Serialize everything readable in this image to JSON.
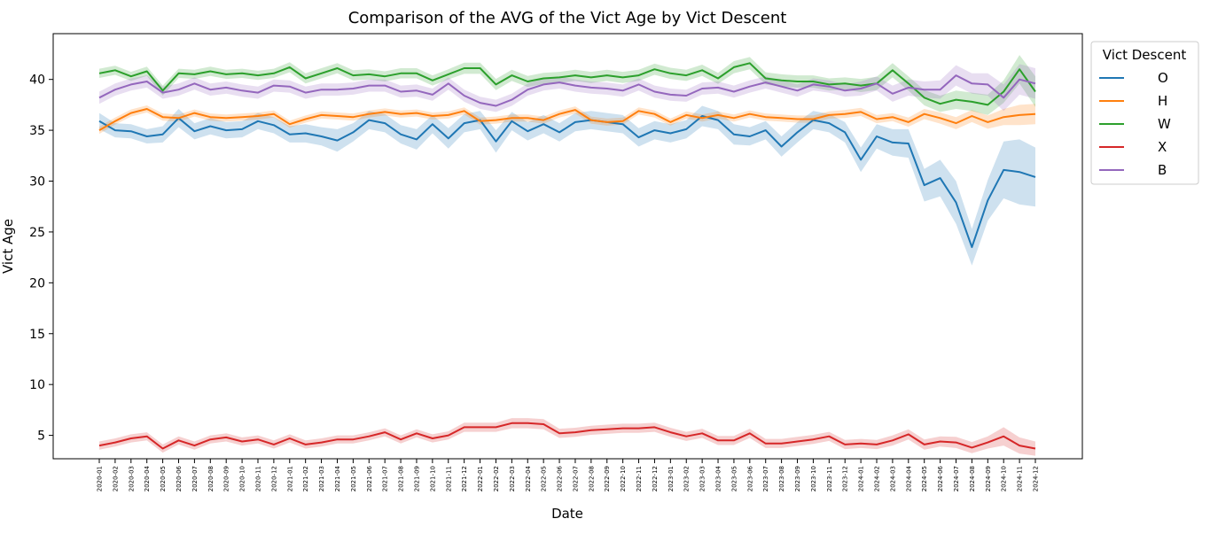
{
  "chart_data": {
    "type": "line",
    "title": "Comparison of the AVG of the Vict Age by Vict Descent",
    "xlabel": "Date",
    "ylabel": "Vict Age",
    "x": [
      "2020-01",
      "2020-02",
      "2020-03",
      "2020-04",
      "2020-05",
      "2020-06",
      "2020-07",
      "2020-08",
      "2020-09",
      "2020-10",
      "2020-11",
      "2020-12",
      "2021-01",
      "2021-02",
      "2021-03",
      "2021-04",
      "2021-05",
      "2021-06",
      "2021-07",
      "2021-08",
      "2021-09",
      "2021-10",
      "2021-11",
      "2021-12",
      "2022-01",
      "2022-02",
      "2022-03",
      "2022-04",
      "2022-05",
      "2022-06",
      "2022-07",
      "2022-08",
      "2022-09",
      "2022-10",
      "2022-11",
      "2022-12",
      "2023-01",
      "2023-02",
      "2023-03",
      "2023-04",
      "2023-05",
      "2023-06",
      "2023-07",
      "2023-08",
      "2023-09",
      "2023-10",
      "2023-11",
      "2023-12",
      "2024-01",
      "2024-02",
      "2024-03",
      "2024-04",
      "2024-05",
      "2024-06",
      "2024-07",
      "2024-08",
      "2024-09",
      "2024-10",
      "2024-11",
      "2024-12"
    ],
    "yticks": [
      5,
      10,
      15,
      20,
      25,
      30,
      35,
      40
    ],
    "ylim": [
      2.7,
      44.5
    ],
    "grid": false,
    "legend": {
      "title": "Vict Descent",
      "placement": "outside-top-right"
    },
    "series": [
      {
        "name": "O",
        "color": "#1f77b4",
        "values": [
          35.9,
          35.0,
          34.9,
          34.4,
          34.6,
          36.2,
          34.9,
          35.4,
          35.0,
          35.1,
          35.9,
          35.5,
          34.6,
          34.7,
          34.4,
          34.0,
          34.8,
          36.0,
          35.7,
          34.6,
          34.1,
          35.6,
          34.2,
          35.7,
          36.0,
          33.9,
          35.9,
          34.9,
          35.6,
          34.8,
          35.8,
          36.0,
          35.8,
          35.6,
          34.3,
          35.0,
          34.7,
          35.1,
          36.4,
          36.0,
          34.6,
          34.4,
          35.0,
          33.4,
          34.8,
          36.0,
          35.7,
          34.8,
          32.1,
          34.4,
          33.8,
          33.7,
          29.6,
          30.3,
          27.9,
          23.5,
          28.1,
          31.1,
          30.9,
          30.4
        ],
        "band": [
          0.8,
          0.7,
          0.7,
          0.7,
          0.8,
          0.9,
          0.8,
          0.8,
          0.8,
          0.8,
          0.8,
          0.8,
          0.8,
          0.9,
          0.9,
          1.1,
          0.9,
          0.9,
          0.9,
          0.9,
          1.0,
          0.9,
          1.0,
          0.9,
          0.9,
          1.1,
          0.9,
          0.9,
          0.9,
          0.9,
          0.9,
          0.9,
          0.9,
          0.9,
          0.9,
          0.9,
          0.9,
          0.9,
          1.0,
          0.9,
          1.0,
          0.9,
          0.9,
          1.0,
          1.0,
          0.9,
          0.9,
          1.0,
          1.2,
          1.2,
          1.3,
          1.4,
          1.6,
          1.8,
          2.1,
          1.8,
          2.0,
          2.8,
          3.2,
          2.9
        ]
      },
      {
        "name": "H",
        "color": "#ff7f0e",
        "values": [
          35.0,
          35.9,
          36.7,
          37.1,
          36.3,
          36.2,
          36.7,
          36.3,
          36.2,
          36.3,
          36.4,
          36.6,
          35.6,
          36.1,
          36.5,
          36.4,
          36.3,
          36.6,
          36.8,
          36.6,
          36.7,
          36.4,
          36.5,
          36.9,
          35.9,
          36.0,
          36.2,
          36.2,
          36.0,
          36.6,
          37.0,
          36.0,
          35.8,
          35.9,
          36.9,
          36.6,
          35.8,
          36.5,
          36.2,
          36.5,
          36.2,
          36.6,
          36.3,
          36.2,
          36.1,
          36.1,
          36.5,
          36.6,
          36.8,
          36.1,
          36.3,
          35.8,
          36.6,
          36.2,
          35.7,
          36.4,
          35.8,
          36.3,
          36.5,
          36.6
        ],
        "band": [
          0.35,
          0.35,
          0.35,
          0.35,
          0.35,
          0.35,
          0.35,
          0.35,
          0.35,
          0.35,
          0.35,
          0.35,
          0.35,
          0.35,
          0.35,
          0.35,
          0.35,
          0.35,
          0.35,
          0.35,
          0.35,
          0.35,
          0.35,
          0.35,
          0.35,
          0.35,
          0.35,
          0.35,
          0.35,
          0.35,
          0.35,
          0.35,
          0.35,
          0.35,
          0.35,
          0.35,
          0.35,
          0.35,
          0.35,
          0.35,
          0.35,
          0.35,
          0.35,
          0.35,
          0.35,
          0.35,
          0.35,
          0.4,
          0.4,
          0.4,
          0.4,
          0.45,
          0.5,
          0.55,
          0.6,
          0.6,
          0.65,
          0.8,
          1.0,
          1.0
        ]
      },
      {
        "name": "W",
        "color": "#2ca02c",
        "values": [
          40.6,
          40.9,
          40.3,
          40.8,
          38.9,
          40.6,
          40.5,
          40.8,
          40.5,
          40.6,
          40.4,
          40.6,
          41.2,
          40.1,
          40.6,
          41.1,
          40.4,
          40.5,
          40.3,
          40.6,
          40.6,
          39.9,
          40.5,
          41.1,
          41.1,
          39.5,
          40.4,
          39.8,
          40.1,
          40.2,
          40.4,
          40.2,
          40.4,
          40.2,
          40.4,
          41.0,
          40.6,
          40.4,
          40.9,
          40.1,
          41.2,
          41.6,
          40.1,
          39.9,
          39.8,
          39.8,
          39.5,
          39.6,
          39.4,
          39.6,
          40.9,
          39.6,
          38.2,
          37.6,
          38.0,
          37.8,
          37.5,
          38.8,
          41.0,
          38.8
        ],
        "band": [
          0.45,
          0.45,
          0.45,
          0.45,
          0.5,
          0.45,
          0.45,
          0.45,
          0.45,
          0.45,
          0.45,
          0.45,
          0.5,
          0.5,
          0.5,
          0.5,
          0.5,
          0.5,
          0.5,
          0.5,
          0.5,
          0.5,
          0.5,
          0.55,
          0.55,
          0.55,
          0.55,
          0.55,
          0.55,
          0.55,
          0.55,
          0.55,
          0.55,
          0.55,
          0.55,
          0.55,
          0.55,
          0.55,
          0.55,
          0.55,
          0.6,
          0.6,
          0.6,
          0.6,
          0.6,
          0.6,
          0.6,
          0.6,
          0.65,
          0.65,
          0.7,
          0.7,
          0.75,
          0.8,
          0.9,
          0.9,
          1.0,
          1.1,
          1.4,
          1.5
        ]
      },
      {
        "name": "X",
        "color": "#d62728",
        "values": [
          4.0,
          4.3,
          4.7,
          4.9,
          3.7,
          4.5,
          4.0,
          4.6,
          4.8,
          4.4,
          4.6,
          4.1,
          4.7,
          4.1,
          4.3,
          4.6,
          4.6,
          4.9,
          5.3,
          4.6,
          5.2,
          4.7,
          5.0,
          5.8,
          5.8,
          5.8,
          6.2,
          6.2,
          6.1,
          5.2,
          5.3,
          5.5,
          5.6,
          5.7,
          5.7,
          5.8,
          5.3,
          4.9,
          5.2,
          4.5,
          4.5,
          5.2,
          4.2,
          4.2,
          4.4,
          4.6,
          4.9,
          4.1,
          4.2,
          4.1,
          4.5,
          5.1,
          4.1,
          4.4,
          4.3,
          3.8,
          4.3,
          4.9,
          4.0,
          3.7
        ],
        "band": [
          0.4,
          0.4,
          0.4,
          0.4,
          0.4,
          0.4,
          0.4,
          0.4,
          0.4,
          0.4,
          0.4,
          0.4,
          0.4,
          0.4,
          0.4,
          0.4,
          0.4,
          0.4,
          0.4,
          0.4,
          0.4,
          0.4,
          0.4,
          0.45,
          0.45,
          0.45,
          0.5,
          0.5,
          0.5,
          0.45,
          0.45,
          0.45,
          0.45,
          0.45,
          0.45,
          0.45,
          0.45,
          0.45,
          0.45,
          0.45,
          0.45,
          0.45,
          0.45,
          0.45,
          0.45,
          0.45,
          0.45,
          0.45,
          0.45,
          0.45,
          0.5,
          0.5,
          0.5,
          0.5,
          0.55,
          0.55,
          0.6,
          0.9,
          0.8,
          0.7
        ]
      },
      {
        "name": "B",
        "color": "#9467bd",
        "values": [
          38.2,
          39.0,
          39.5,
          39.8,
          38.7,
          39.0,
          39.6,
          39.0,
          39.2,
          38.9,
          38.7,
          39.4,
          39.3,
          38.7,
          39.0,
          39.0,
          39.1,
          39.4,
          39.4,
          38.8,
          38.9,
          38.5,
          39.6,
          38.4,
          37.7,
          37.4,
          38.0,
          39.0,
          39.5,
          39.7,
          39.4,
          39.2,
          39.1,
          38.9,
          39.5,
          38.8,
          38.5,
          38.4,
          39.1,
          39.2,
          38.8,
          39.3,
          39.7,
          39.3,
          38.9,
          39.5,
          39.3,
          38.9,
          39.1,
          39.6,
          38.6,
          39.2,
          39.0,
          39.0,
          40.4,
          39.6,
          39.5,
          38.2,
          40.0,
          39.6
        ],
        "band": [
          0.6,
          0.6,
          0.6,
          0.6,
          0.6,
          0.6,
          0.6,
          0.6,
          0.6,
          0.6,
          0.6,
          0.6,
          0.6,
          0.6,
          0.6,
          0.6,
          0.6,
          0.6,
          0.6,
          0.6,
          0.6,
          0.6,
          0.6,
          0.6,
          0.6,
          0.6,
          0.6,
          0.6,
          0.6,
          0.6,
          0.6,
          0.6,
          0.6,
          0.6,
          0.6,
          0.6,
          0.6,
          0.6,
          0.6,
          0.6,
          0.6,
          0.6,
          0.6,
          0.6,
          0.6,
          0.6,
          0.6,
          0.6,
          0.7,
          0.7,
          0.8,
          0.8,
          0.8,
          0.9,
          1.0,
          1.0,
          1.1,
          1.3,
          1.5,
          1.5
        ]
      }
    ]
  }
}
